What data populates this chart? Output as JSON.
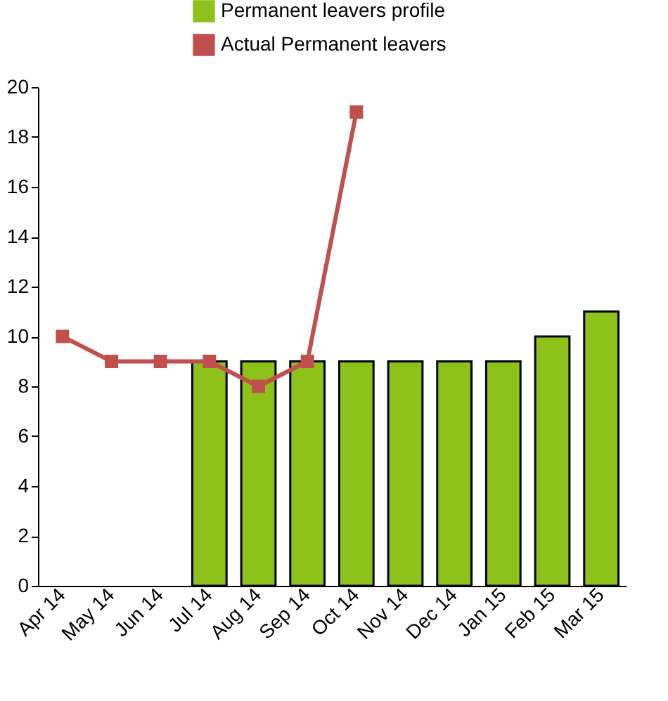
{
  "chart_data": {
    "type": "bar",
    "categories": [
      "Apr 14",
      "May 14",
      "Jun 14",
      "Jul 14",
      "Aug 14",
      "Sep 14",
      "Oct 14",
      "Nov 14",
      "Dec 14",
      "Jan 15",
      "Feb 15",
      "Mar 15"
    ],
    "series": [
      {
        "name": "Permanent leavers profile",
        "color": "#8cc21a",
        "values": [
          null,
          null,
          null,
          9,
          9,
          9,
          9,
          9,
          9,
          9,
          10,
          11
        ]
      },
      {
        "name": "Actual Permanent leavers",
        "type": "line",
        "color": "#c0504d",
        "values": [
          10,
          9,
          9,
          9,
          8,
          9,
          19,
          null,
          null,
          null,
          null,
          null
        ]
      }
    ],
    "ylim": [
      0,
      20
    ],
    "yticks": [
      0,
      2,
      4,
      6,
      8,
      10,
      12,
      14,
      16,
      18,
      20
    ],
    "grid": false,
    "legend": "top",
    "marker": "square"
  }
}
